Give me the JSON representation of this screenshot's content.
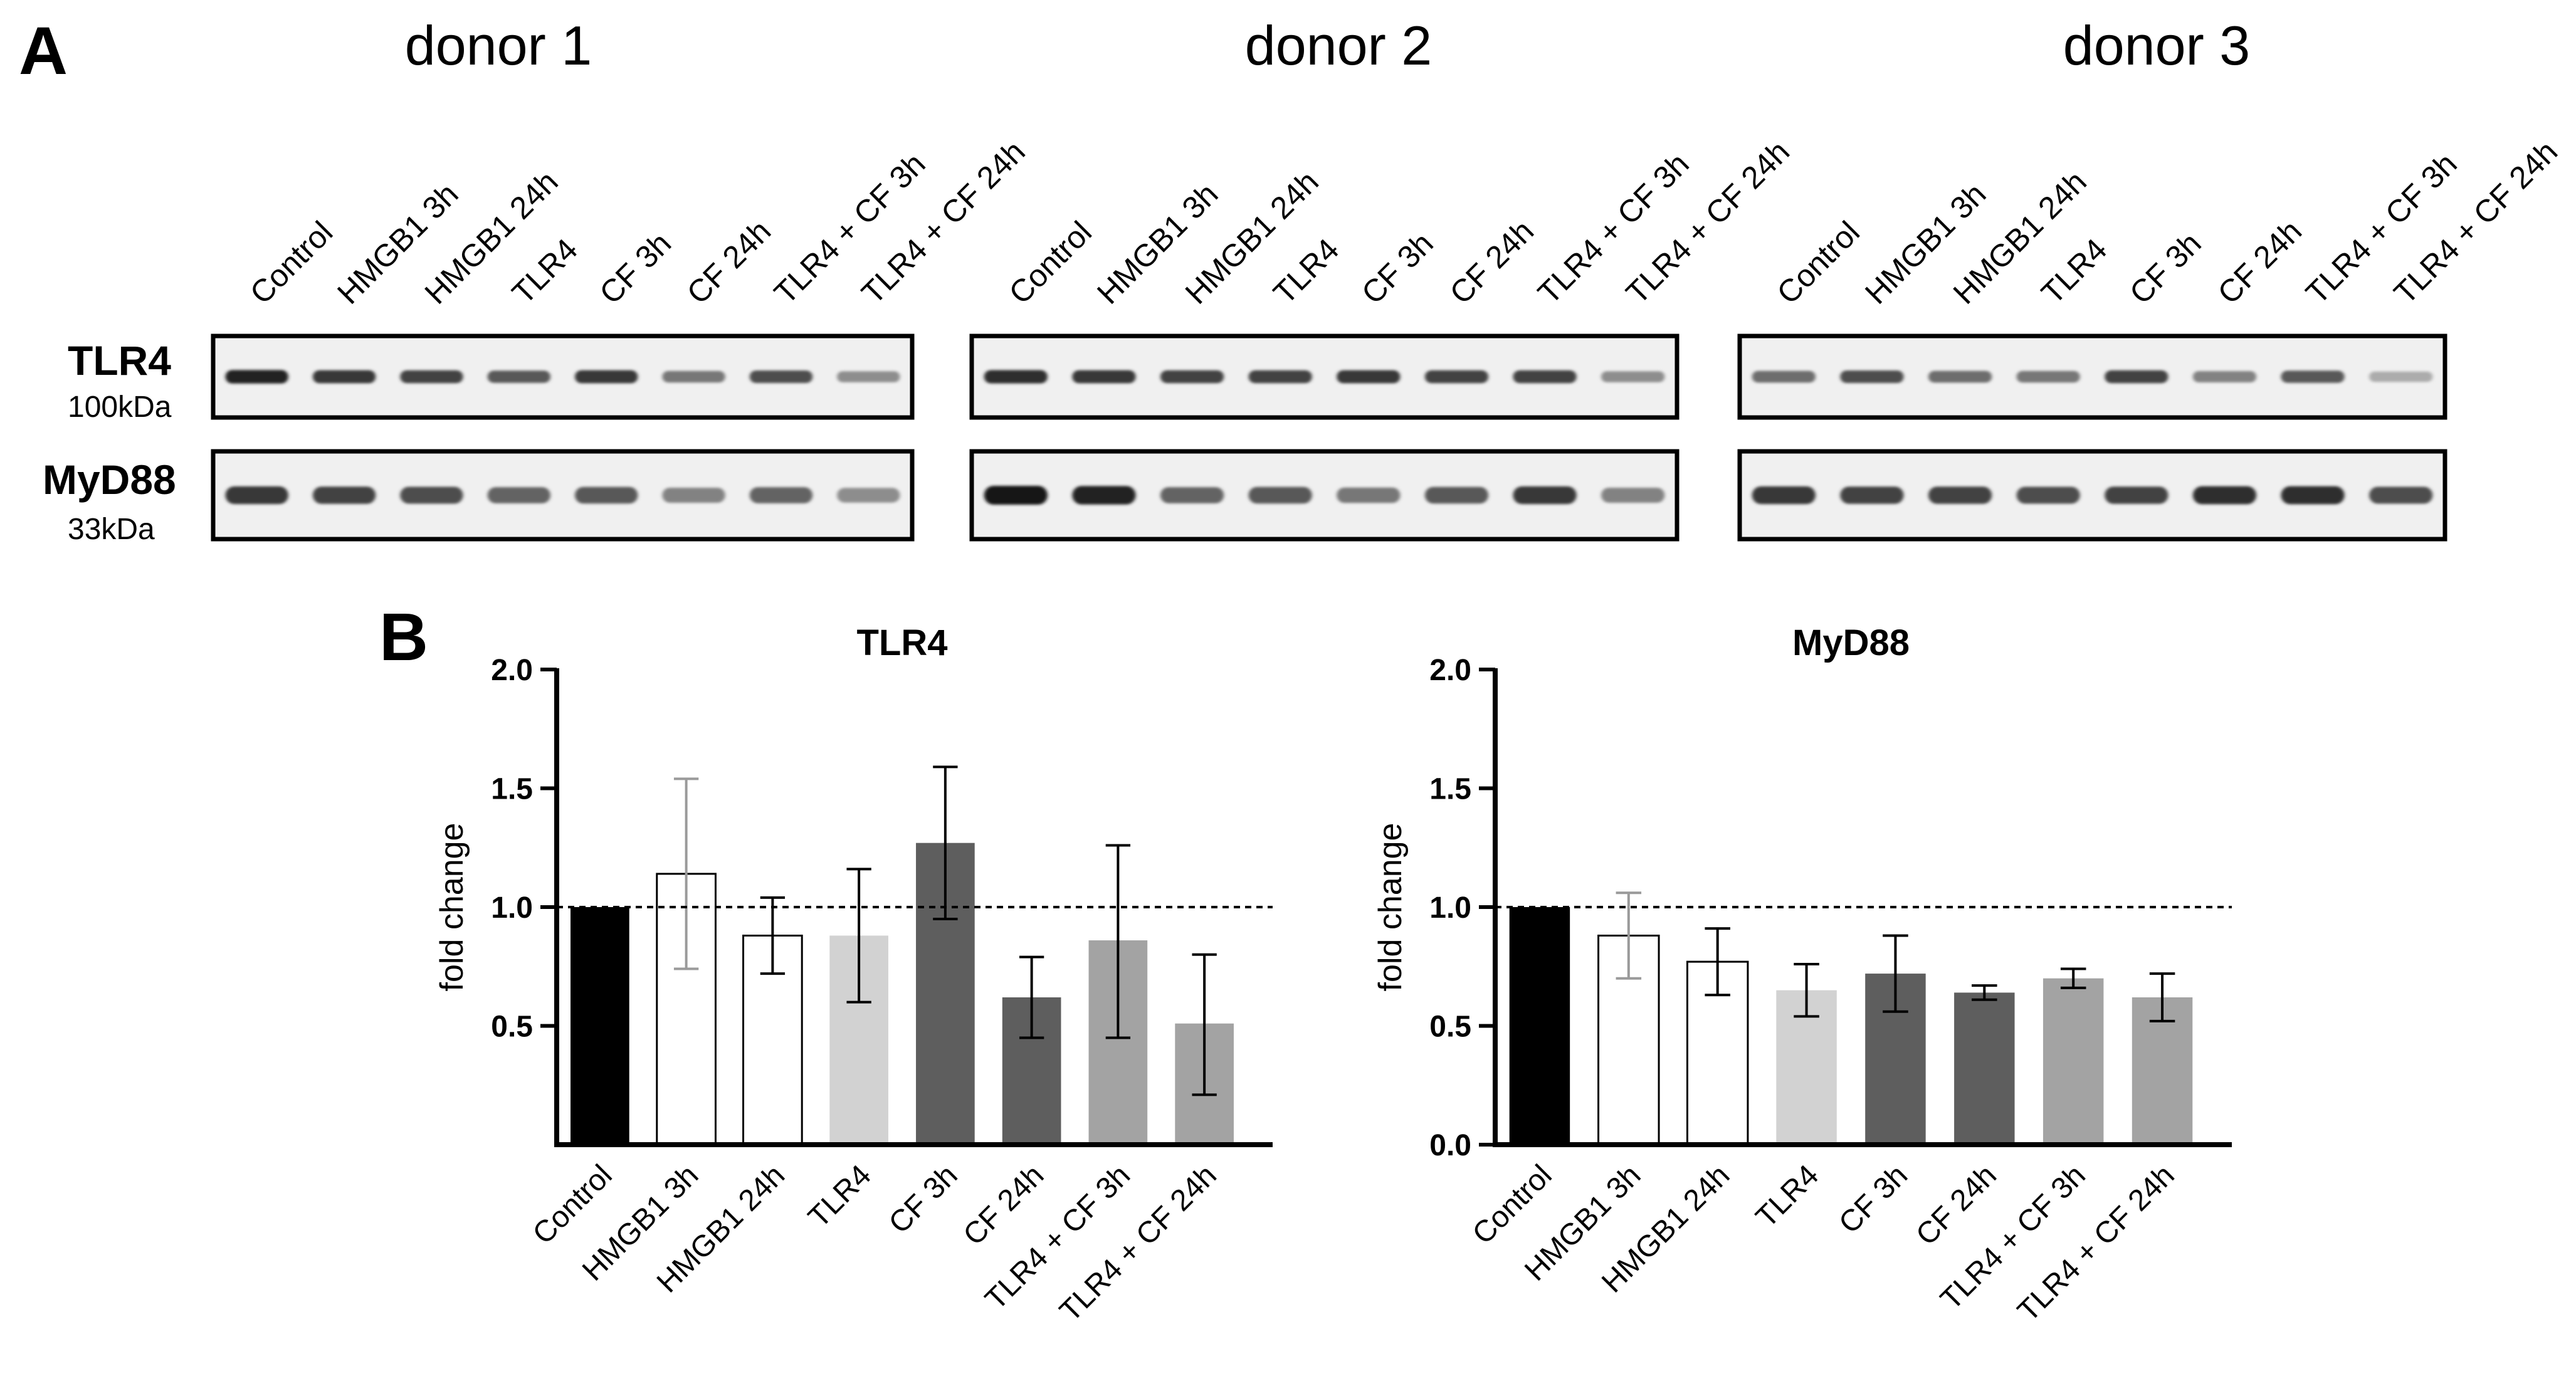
{
  "panel_a": {
    "label": "A",
    "donors": [
      "donor 1",
      "donor 2",
      "donor 3"
    ],
    "lanes": [
      "Control",
      "HMGB1 3h",
      "HMGB1 24h",
      "TLR4",
      "CF 3h",
      "CF 24h",
      "TLR4 + CF 3h",
      "TLR4 + CF 24h"
    ],
    "blots": [
      {
        "name": "TLR4",
        "mass": "100kDa"
      },
      {
        "name": "MyD88",
        "mass": "33kDa"
      }
    ],
    "band_intensity": {
      "TLR4": [
        [
          0.95,
          0.85,
          0.8,
          0.7,
          0.85,
          0.55,
          0.75,
          0.45
        ],
        [
          0.9,
          0.85,
          0.8,
          0.8,
          0.85,
          0.8,
          0.8,
          0.45
        ],
        [
          0.6,
          0.75,
          0.6,
          0.55,
          0.8,
          0.5,
          0.7,
          0.3
        ]
      ],
      "MyD88": [
        [
          0.85,
          0.8,
          0.75,
          0.65,
          0.7,
          0.5,
          0.65,
          0.45
        ],
        [
          1.0,
          0.95,
          0.65,
          0.7,
          0.55,
          0.7,
          0.85,
          0.5
        ],
        [
          0.85,
          0.8,
          0.8,
          0.75,
          0.8,
          0.9,
          0.9,
          0.75
        ]
      ]
    }
  },
  "panel_b": {
    "label": "B"
  },
  "chart_data": [
    {
      "type": "bar",
      "title": "TLR4",
      "ylabel": "fold change",
      "xlabel": "",
      "categories": [
        "Control",
        "HMGB1 3h",
        "HMGB1 24h",
        "TLR4",
        "CF 3h",
        "CF 24h",
        "TLR4 + CF 3h",
        "TLR4 + CF 24h"
      ],
      "values": [
        1.0,
        1.14,
        0.88,
        0.88,
        1.27,
        0.62,
        0.86,
        0.51
      ],
      "error_low": [
        1.0,
        0.74,
        0.72,
        0.6,
        0.95,
        0.45,
        0.45,
        0.21
      ],
      "error_high": [
        1.0,
        1.54,
        1.04,
        1.16,
        1.59,
        0.79,
        1.26,
        0.8
      ],
      "ylim": [
        0,
        2.0
      ],
      "yticks": [
        "0.5",
        "1.0",
        "1.5",
        "2.0"
      ],
      "ytick_values": [
        0.5,
        1.0,
        1.5,
        2.0
      ],
      "reference_line": 1.0,
      "bar_colors": [
        "#000000",
        "#ffffff",
        "#ffffff",
        "#d2d2d2",
        "#5e5e5e",
        "#5e5e5e",
        "#a3a3a3",
        "#a3a3a3"
      ],
      "error_colors": [
        "#000000",
        "#9a9a9a",
        "#000000",
        "#000000",
        "#000000",
        "#000000",
        "#000000",
        "#000000"
      ],
      "grid": false
    },
    {
      "type": "bar",
      "title": "MyD88",
      "ylabel": "fold change",
      "xlabel": "",
      "categories": [
        "Control",
        "HMGB1 3h",
        "HMGB1 24h",
        "TLR4",
        "CF 3h",
        "CF 24h",
        "TLR4 + CF 3h",
        "TLR4 + CF 24h"
      ],
      "values": [
        1.0,
        0.88,
        0.77,
        0.65,
        0.72,
        0.64,
        0.7,
        0.62
      ],
      "error_low": [
        1.0,
        0.7,
        0.63,
        0.54,
        0.56,
        0.61,
        0.66,
        0.52
      ],
      "error_high": [
        1.0,
        1.06,
        0.91,
        0.76,
        0.88,
        0.67,
        0.74,
        0.72
      ],
      "ylim": [
        0,
        2.0
      ],
      "yticks": [
        "0.0",
        "0.5",
        "1.0",
        "1.5",
        "2.0"
      ],
      "ytick_values": [
        0.0,
        0.5,
        1.0,
        1.5,
        2.0
      ],
      "reference_line": 1.0,
      "bar_colors": [
        "#000000",
        "#ffffff",
        "#ffffff",
        "#d2d2d2",
        "#5e5e5e",
        "#5e5e5e",
        "#a3a3a3",
        "#a3a3a3"
      ],
      "error_colors": [
        "#000000",
        "#9a9a9a",
        "#000000",
        "#000000",
        "#000000",
        "#000000",
        "#000000",
        "#000000"
      ],
      "grid": false
    }
  ]
}
